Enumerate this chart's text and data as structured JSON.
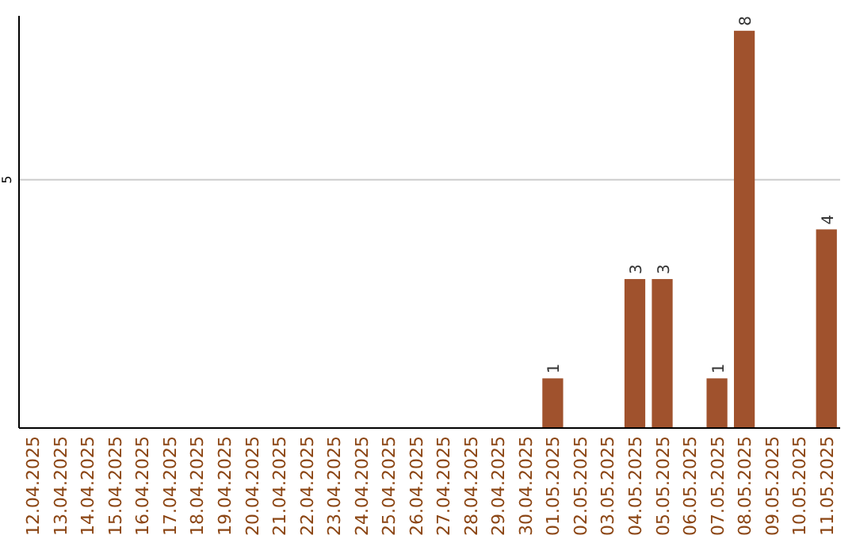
{
  "chart_data": {
    "type": "bar",
    "categories": [
      "12.04.2025",
      "13.04.2025",
      "14.04.2025",
      "15.04.2025",
      "16.04.2025",
      "17.04.2025",
      "18.04.2025",
      "19.04.2025",
      "20.04.2025",
      "21.04.2025",
      "22.04.2025",
      "23.04.2025",
      "24.04.2025",
      "25.04.2025",
      "26.04.2025",
      "27.04.2025",
      "28.04.2025",
      "29.04.2025",
      "30.04.2025",
      "01.05.2025",
      "02.05.2025",
      "03.05.2025",
      "04.05.2025",
      "05.05.2025",
      "06.05.2025",
      "07.05.2025",
      "08.05.2025",
      "09.05.2025",
      "10.05.2025",
      "11.05.2025"
    ],
    "values": [
      null,
      null,
      null,
      null,
      null,
      null,
      null,
      null,
      null,
      null,
      null,
      null,
      null,
      null,
      null,
      null,
      null,
      null,
      null,
      1,
      null,
      null,
      3,
      3,
      null,
      1,
      8,
      null,
      null,
      4
    ],
    "data_labels": true,
    "color": "#a0522d",
    "ylim": [
      0,
      8.3
    ],
    "ref_lines": [
      {
        "axis": "y",
        "value": 5,
        "label": "5",
        "color": "#cccccc"
      }
    ]
  }
}
